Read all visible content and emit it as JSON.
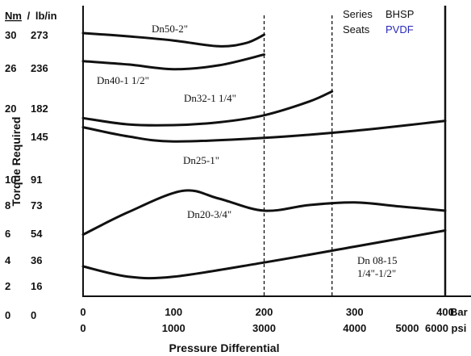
{
  "chart_data": {
    "type": "line",
    "title": "",
    "xlabel": "Pressure Differential",
    "ylabel": "Torque Required",
    "y_header": {
      "nm": "Nm",
      "separator": "/",
      "lbin": "lb/in"
    },
    "y_ticks": [
      {
        "nm": "30",
        "lbin": "273"
      },
      {
        "nm": "26",
        "lbin": "236"
      },
      {
        "nm": "20",
        "lbin": "182"
      },
      {
        "nm": "",
        "lbin": "145"
      },
      {
        "nm": "10",
        "lbin": "91"
      },
      {
        "nm": "8",
        "lbin": "73"
      },
      {
        "nm": "6",
        "lbin": "54"
      },
      {
        "nm": "4",
        "lbin": "36"
      },
      {
        "nm": "2",
        "lbin": "16"
      },
      {
        "nm": "0",
        "lbin": "0"
      }
    ],
    "x_ticks": [
      {
        "bar": "0",
        "psi": "0",
        "x": 0
      },
      {
        "bar": "100",
        "psi": "1000",
        "x": 100
      },
      {
        "bar": "200",
        "psi": "3000",
        "x": 200
      },
      {
        "bar": "300",
        "psi": "4000",
        "x": 300
      },
      {
        "bar": "400",
        "psi": "5000",
        "x": 400
      }
    ],
    "x_end_labels": {
      "bar": "Bar",
      "psi": "6000 psi"
    },
    "xlim": [
      0,
      400
    ],
    "legend": {
      "series_label": "Series",
      "series_value": "BHSP",
      "seats_label": "Seats",
      "seats_value": "PVDF",
      "seats_color": "#2a2ab8"
    },
    "series": [
      {
        "name": "Dn50-2\"",
        "label": "Dn50-2\"",
        "x": [
          0,
          50,
          100,
          150,
          180,
          200
        ],
        "y": [
          30.2,
          29.8,
          29.3,
          28.6,
          29.0,
          30.0
        ]
      },
      {
        "name": "Dn40-1 1/2\"",
        "label": "Dn40-1 1/2\"",
        "x": [
          0,
          50,
          100,
          150,
          200
        ],
        "y": [
          26.8,
          26.4,
          25.8,
          26.3,
          27.6
        ]
      },
      {
        "name": "Dn32-1 1/4\"",
        "label": "Dn32-1 1/4\"",
        "x": [
          0,
          50,
          100,
          150,
          200,
          250,
          275
        ],
        "y": [
          18.6,
          17.7,
          17.6,
          18.0,
          19.0,
          21.0,
          22.5
        ]
      },
      {
        "name": "Dn25-1\"",
        "label": "Dn25-1\"",
        "x": [
          0,
          50,
          100,
          200,
          300,
          400
        ],
        "y": [
          17.3,
          16.0,
          15.3,
          15.8,
          16.8,
          18.2
        ]
      },
      {
        "name": "Dn20-3/4\"",
        "label": "Dn20-3/4\"",
        "x": [
          0,
          50,
          110,
          150,
          200,
          250,
          300,
          350,
          400
        ],
        "y": [
          5.9,
          7.5,
          9.1,
          8.5,
          7.6,
          8.0,
          8.2,
          7.9,
          7.6
        ]
      },
      {
        "name": "Dn 08-15 1/4\"-1/2\"",
        "label_lines": [
          "Dn 08-15",
          "1/4\"-1/2\""
        ],
        "x": [
          0,
          50,
          100,
          200,
          300,
          400
        ],
        "y": [
          3.5,
          2.7,
          2.7,
          3.8,
          5.0,
          6.2
        ]
      }
    ],
    "reference_lines": [
      200,
      275,
      400
    ],
    "grid": false
  }
}
